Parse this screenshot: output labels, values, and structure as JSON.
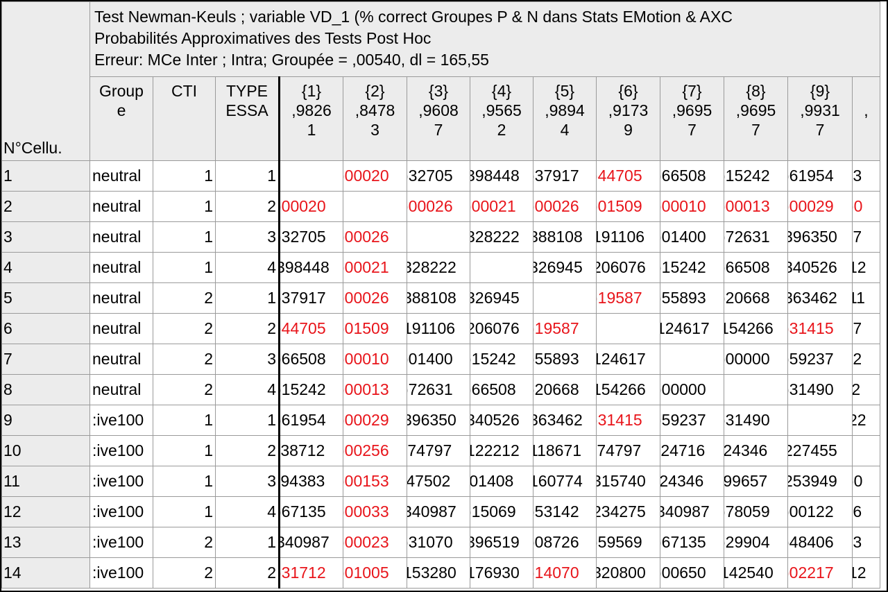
{
  "info": {
    "line1": "Test Newman-Keuls ; variable VD_1 (% correct Groupes P & N dans Stats EMotion & AXC",
    "line2": "Probabilités Approximatives des Tests Post Hoc",
    "line3": "Erreur: MCe Inter ; Intra; Groupée = ,00540, dl = 165,55"
  },
  "corner_label": "N°Cellu.",
  "headers": {
    "groupe": [
      "Group",
      "e"
    ],
    "cti": "CTI",
    "type": [
      "TYPE",
      "ESSA"
    ],
    "columns": [
      {
        "id": "{1}",
        "mean": ",9826",
        "cont": "1"
      },
      {
        "id": "{2}",
        "mean": ",8478",
        "cont": "3"
      },
      {
        "id": "{3}",
        "mean": ",9608",
        "cont": "7"
      },
      {
        "id": "{4}",
        "mean": ",9565",
        "cont": "2"
      },
      {
        "id": "{5}",
        "mean": ",9894",
        "cont": "4"
      },
      {
        "id": "{6}",
        "mean": ",9173",
        "cont": "9"
      },
      {
        "id": "{7}",
        "mean": ",9695",
        "cont": "7"
      },
      {
        "id": "{8}",
        "mean": ",9695",
        "cont": "7"
      },
      {
        "id": "{9}",
        "mean": ",9931",
        "cont": "7"
      },
      {
        "id": "",
        "mean": ",",
        "cont": ""
      }
    ]
  },
  "colors": {
    "significant": "#e8141a",
    "normal": "#000000",
    "header_bg": "#ececec",
    "grid": "#9a9a9a"
  },
  "rows": [
    {
      "n": "1",
      "groupe": "neutral",
      "cti": "1",
      "type": "1",
      "values": [
        {
          "t": "",
          "sig": false
        },
        {
          "t": ")00020",
          "sig": true
        },
        {
          "t": ")32705",
          "sig": false
        },
        {
          "t": "398448",
          "sig": false
        },
        {
          "t": ")37917",
          "sig": false
        },
        {
          "t": ")44705",
          "sig": true
        },
        {
          "t": ")66508",
          "sig": false
        },
        {
          "t": ")15242",
          "sig": false
        },
        {
          "t": ")61954",
          "sig": false
        },
        {
          "t": ";3",
          "sig": false
        }
      ]
    },
    {
      "n": "2",
      "groupe": "neutral",
      "cti": "1",
      "type": "2",
      "values": [
        {
          "t": ")00020",
          "sig": true
        },
        {
          "t": "",
          "sig": false
        },
        {
          "t": ")00026",
          "sig": true
        },
        {
          "t": ")00021",
          "sig": true
        },
        {
          "t": ")00026",
          "sig": true
        },
        {
          "t": ")01509",
          "sig": true
        },
        {
          "t": ")00010",
          "sig": true
        },
        {
          "t": ")00013",
          "sig": true
        },
        {
          "t": ")00029",
          "sig": true
        },
        {
          "t": ")0",
          "sig": true
        }
      ]
    },
    {
      "n": "3",
      "groupe": "neutral",
      "cti": "1",
      "type": "3",
      "values": [
        {
          "t": ")32705",
          "sig": false
        },
        {
          "t": ")00026",
          "sig": true
        },
        {
          "t": "",
          "sig": false
        },
        {
          "t": "328222",
          "sig": false
        },
        {
          "t": "388108",
          "sig": false
        },
        {
          "t": "191106",
          "sig": false
        },
        {
          "t": ")01400",
          "sig": false
        },
        {
          "t": ")72631",
          "sig": false
        },
        {
          "t": "396350",
          "sig": false
        },
        {
          "t": ";7",
          "sig": false
        }
      ]
    },
    {
      "n": "4",
      "groupe": "neutral",
      "cti": "1",
      "type": "4",
      "values": [
        {
          "t": "398448",
          "sig": false
        },
        {
          "t": ")00021",
          "sig": true
        },
        {
          "t": "328222",
          "sig": false
        },
        {
          "t": "",
          "sig": false
        },
        {
          "t": "326945",
          "sig": false
        },
        {
          "t": "206076",
          "sig": false
        },
        {
          "t": ")15242",
          "sig": false
        },
        {
          "t": ")66508",
          "sig": false
        },
        {
          "t": "340526",
          "sig": false
        },
        {
          "t": "12",
          "sig": false
        }
      ]
    },
    {
      "n": "5",
      "groupe": "neutral",
      "cti": "2",
      "type": "1",
      "values": [
        {
          "t": ")37917",
          "sig": false
        },
        {
          "t": ")00026",
          "sig": true
        },
        {
          "t": "388108",
          "sig": false
        },
        {
          "t": "326945",
          "sig": false
        },
        {
          "t": "",
          "sig": false
        },
        {
          "t": ")19587",
          "sig": true
        },
        {
          "t": ")55893",
          "sig": false
        },
        {
          "t": ")20668",
          "sig": false
        },
        {
          "t": "363462",
          "sig": false
        },
        {
          "t": "11",
          "sig": false
        }
      ]
    },
    {
      "n": "6",
      "groupe": "neutral",
      "cti": "2",
      "type": "2",
      "values": [
        {
          "t": ")44705",
          "sig": true
        },
        {
          "t": ")01509",
          "sig": true
        },
        {
          "t": "191106",
          "sig": false
        },
        {
          "t": "206076",
          "sig": false
        },
        {
          "t": ")19587",
          "sig": true
        },
        {
          "t": "",
          "sig": false
        },
        {
          "t": "124617",
          "sig": false
        },
        {
          "t": "154266",
          "sig": false
        },
        {
          "t": ")31415",
          "sig": true
        },
        {
          "t": ";7",
          "sig": false
        }
      ]
    },
    {
      "n": "7",
      "groupe": "neutral",
      "cti": "2",
      "type": "3",
      "values": [
        {
          "t": ")66508",
          "sig": false
        },
        {
          "t": ")00010",
          "sig": true
        },
        {
          "t": ")01400",
          "sig": false
        },
        {
          "t": ")15242",
          "sig": false
        },
        {
          "t": ")55893",
          "sig": false
        },
        {
          "t": "124617",
          "sig": false
        },
        {
          "t": "",
          "sig": false
        },
        {
          "t": ")00000",
          "sig": false
        },
        {
          "t": ")59237",
          "sig": false
        },
        {
          "t": ";2",
          "sig": false
        }
      ]
    },
    {
      "n": "8",
      "groupe": "neutral",
      "cti": "2",
      "type": "4",
      "values": [
        {
          "t": ")15242",
          "sig": false
        },
        {
          "t": ")00013",
          "sig": true
        },
        {
          "t": ")72631",
          "sig": false
        },
        {
          "t": ")66508",
          "sig": false
        },
        {
          "t": ")20668",
          "sig": false
        },
        {
          "t": "154266",
          "sig": false
        },
        {
          "t": ")00000",
          "sig": false
        },
        {
          "t": "",
          "sig": false
        },
        {
          "t": ")31490",
          "sig": false
        },
        {
          "t": "'2",
          "sig": false
        }
      ]
    },
    {
      "n": "9",
      "groupe": ":ive100",
      "cti": "1",
      "type": "1",
      "values": [
        {
          "t": ")61954",
          "sig": false
        },
        {
          "t": ")00029",
          "sig": true
        },
        {
          "t": "396350",
          "sig": false
        },
        {
          "t": "340526",
          "sig": false
        },
        {
          "t": "363462",
          "sig": false
        },
        {
          "t": ")31415",
          "sig": true
        },
        {
          "t": ")59237",
          "sig": false
        },
        {
          "t": ")31490",
          "sig": false
        },
        {
          "t": "",
          "sig": false
        },
        {
          "t": "22",
          "sig": false
        }
      ]
    },
    {
      "n": "10",
      "groupe": ":ive100",
      "cti": "1",
      "type": "2",
      "values": [
        {
          "t": ";38712",
          "sig": false
        },
        {
          "t": ")00256",
          "sig": true
        },
        {
          "t": ";74797",
          "sig": false
        },
        {
          "t": "122212",
          "sig": false
        },
        {
          "t": "118671",
          "sig": false
        },
        {
          "t": ";74797",
          "sig": false
        },
        {
          "t": ";24716",
          "sig": false
        },
        {
          "t": "'24346",
          "sig": false
        },
        {
          "t": "227455",
          "sig": false
        },
        {
          "t": "",
          "sig": false
        }
      ]
    },
    {
      "n": "11",
      "groupe": ":ive100",
      "cti": "1",
      "type": "3",
      "values": [
        {
          "t": ";94383",
          "sig": false
        },
        {
          "t": ")00153",
          "sig": true
        },
        {
          "t": "'47502",
          "sig": false
        },
        {
          "t": "'01408",
          "sig": false
        },
        {
          "t": "160774",
          "sig": false
        },
        {
          "t": "315740",
          "sig": false
        },
        {
          "t": "'24346",
          "sig": false
        },
        {
          "t": "'99657",
          "sig": false
        },
        {
          "t": "253949",
          "sig": false
        },
        {
          "t": ")0",
          "sig": false
        }
      ]
    },
    {
      "n": "12",
      "groupe": ":ive100",
      "cti": "1",
      "type": "4",
      "values": [
        {
          "t": ")67135",
          "sig": false
        },
        {
          "t": ")00033",
          "sig": true
        },
        {
          "t": "340987",
          "sig": false
        },
        {
          "t": ")15069",
          "sig": false
        },
        {
          "t": ")53142",
          "sig": false
        },
        {
          "t": "234275",
          "sig": false
        },
        {
          "t": "340987",
          "sig": false
        },
        {
          "t": ")78059",
          "sig": false
        },
        {
          "t": ")00122",
          "sig": false
        },
        {
          "t": ";6",
          "sig": false
        }
      ]
    },
    {
      "n": "13",
      "groupe": ":ive100",
      "cti": "2",
      "type": "1",
      "values": [
        {
          "t": "340987",
          "sig": false
        },
        {
          "t": ")00023",
          "sig": true
        },
        {
          "t": ")31070",
          "sig": false
        },
        {
          "t": "396519",
          "sig": false
        },
        {
          "t": ")08726",
          "sig": false
        },
        {
          "t": ")59569",
          "sig": false
        },
        {
          "t": ")67135",
          "sig": false
        },
        {
          "t": ")29904",
          "sig": false
        },
        {
          "t": ")48406",
          "sig": false
        },
        {
          "t": ";3",
          "sig": false
        }
      ]
    },
    {
      "n": "14",
      "groupe": ":ive100",
      "cti": "2",
      "type": "2",
      "values": [
        {
          "t": ")31712",
          "sig": true
        },
        {
          "t": ")01005",
          "sig": true
        },
        {
          "t": "153280",
          "sig": false
        },
        {
          "t": "176930",
          "sig": false
        },
        {
          "t": ")14070",
          "sig": true
        },
        {
          "t": "320800",
          "sig": false
        },
        {
          "t": ")00650",
          "sig": false
        },
        {
          "t": "142540",
          "sig": false
        },
        {
          "t": ")02217",
          "sig": true
        },
        {
          "t": "12",
          "sig": false
        }
      ]
    }
  ]
}
